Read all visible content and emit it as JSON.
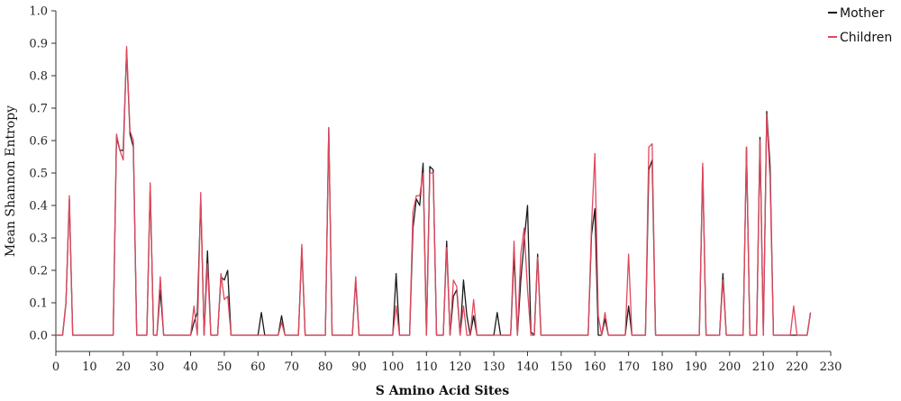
{
  "chart_data": {
    "type": "line",
    "xlabel": "S Amino Acid Sites",
    "ylabel": "Mean Shannon Entropy",
    "xlim": [
      0,
      230
    ],
    "ylim": [
      -0.05,
      1.0
    ],
    "x_ticks": [
      0,
      10,
      20,
      30,
      40,
      50,
      60,
      70,
      80,
      90,
      100,
      110,
      120,
      130,
      140,
      150,
      160,
      170,
      180,
      190,
      200,
      210,
      220,
      230
    ],
    "x_tick_labels": [
      "0",
      "10",
      "20",
      "30",
      "40",
      "50",
      "60",
      "70",
      "80",
      "90",
      "100",
      "110",
      "120",
      "130",
      "140",
      "150",
      "160",
      "170",
      "180",
      "190",
      "200",
      "210",
      "220",
      "230"
    ],
    "y_ticks": [
      0.0,
      0.1,
      0.2,
      0.3,
      0.4,
      0.5,
      0.6,
      0.7,
      0.8,
      0.9,
      1.0
    ],
    "y_tick_labels": [
      "0.0",
      "0.1",
      "0.2",
      "0.3",
      "0.4",
      "0.5",
      "0.6",
      "0.7",
      "0.8",
      "0.9",
      "1.0"
    ],
    "grid": false,
    "legend_position": "top-right",
    "series": [
      {
        "name": "Mother",
        "color": "#1a1a1a",
        "points": [
          [
            0,
            0
          ],
          [
            2,
            0
          ],
          [
            3,
            0.1
          ],
          [
            4,
            0.42
          ],
          [
            5,
            0
          ],
          [
            17,
            0
          ],
          [
            18,
            0.61
          ],
          [
            19,
            0.57
          ],
          [
            20,
            0.57
          ],
          [
            21,
            0.88
          ],
          [
            22,
            0.62
          ],
          [
            23,
            0.58
          ],
          [
            24,
            0
          ],
          [
            27,
            0
          ],
          [
            28,
            0.46
          ],
          [
            29,
            0
          ],
          [
            30,
            0
          ],
          [
            31,
            0.14
          ],
          [
            32,
            0
          ],
          [
            40,
            0
          ],
          [
            41,
            0.04
          ],
          [
            42,
            0.07
          ],
          [
            43,
            0.42
          ],
          [
            44,
            0
          ],
          [
            45,
            0.26
          ],
          [
            46,
            0
          ],
          [
            48,
            0
          ],
          [
            49,
            0.18
          ],
          [
            50,
            0.17
          ],
          [
            51,
            0.2
          ],
          [
            52,
            0
          ],
          [
            60,
            0
          ],
          [
            61,
            0.07
          ],
          [
            62,
            0
          ],
          [
            66,
            0
          ],
          [
            67,
            0.06
          ],
          [
            68,
            0
          ],
          [
            72,
            0
          ],
          [
            73,
            0.27
          ],
          [
            74,
            0
          ],
          [
            80,
            0
          ],
          [
            81,
            0.64
          ],
          [
            82,
            0
          ],
          [
            88,
            0
          ],
          [
            89,
            0.17
          ],
          [
            90,
            0
          ],
          [
            100,
            0
          ],
          [
            101,
            0.19
          ],
          [
            102,
            0
          ],
          [
            105,
            0
          ],
          [
            106,
            0.33
          ],
          [
            107,
            0.42
          ],
          [
            108,
            0.4
          ],
          [
            109,
            0.53
          ],
          [
            110,
            0
          ],
          [
            111,
            0.52
          ],
          [
            112,
            0.51
          ],
          [
            113,
            0
          ],
          [
            115,
            0
          ],
          [
            116,
            0.29
          ],
          [
            117,
            0
          ],
          [
            118,
            0.12
          ],
          [
            119,
            0.14
          ],
          [
            120,
            0
          ],
          [
            121,
            0.17
          ],
          [
            122,
            0.06
          ],
          [
            123,
            0
          ],
          [
            124,
            0.06
          ],
          [
            125,
            0
          ],
          [
            130,
            0
          ],
          [
            131,
            0.07
          ],
          [
            132,
            0
          ],
          [
            135,
            0
          ],
          [
            136,
            0.25
          ],
          [
            137,
            0
          ],
          [
            138,
            0.17
          ],
          [
            139,
            0.29
          ],
          [
            140,
            0.4
          ],
          [
            141,
            0.01
          ],
          [
            142,
            0
          ],
          [
            143,
            0.25
          ],
          [
            144,
            0
          ],
          [
            158,
            0
          ],
          [
            159,
            0.31
          ],
          [
            160,
            0.39
          ],
          [
            161,
            0
          ],
          [
            162,
            0
          ],
          [
            163,
            0.05
          ],
          [
            164,
            0
          ],
          [
            169,
            0
          ],
          [
            170,
            0.09
          ],
          [
            171,
            0
          ],
          [
            175,
            0
          ],
          [
            176,
            0.51
          ],
          [
            177,
            0.54
          ],
          [
            178,
            0
          ],
          [
            191,
            0
          ],
          [
            192,
            0.52
          ],
          [
            193,
            0
          ],
          [
            197,
            0
          ],
          [
            198,
            0.19
          ],
          [
            199,
            0
          ],
          [
            204,
            0
          ],
          [
            205,
            0.58
          ],
          [
            206,
            0
          ],
          [
            208,
            0
          ],
          [
            209,
            0.61
          ],
          [
            210,
            0
          ],
          [
            211,
            0.69
          ],
          [
            212,
            0.52
          ],
          [
            213,
            0
          ],
          [
            218,
            0
          ],
          [
            219,
            0
          ],
          [
            220,
            0
          ],
          [
            223,
            0
          ],
          [
            224,
            0.07
          ]
        ]
      },
      {
        "name": "Children",
        "color": "#e0485e",
        "points": [
          [
            0,
            0
          ],
          [
            2,
            0
          ],
          [
            3,
            0.1
          ],
          [
            4,
            0.43
          ],
          [
            5,
            0
          ],
          [
            17,
            0
          ],
          [
            18,
            0.62
          ],
          [
            19,
            0.57
          ],
          [
            20,
            0.54
          ],
          [
            21,
            0.89
          ],
          [
            22,
            0.63
          ],
          [
            23,
            0.6
          ],
          [
            24,
            0
          ],
          [
            27,
            0
          ],
          [
            28,
            0.47
          ],
          [
            29,
            0
          ],
          [
            30,
            0
          ],
          [
            31,
            0.18
          ],
          [
            32,
            0
          ],
          [
            40,
            0
          ],
          [
            41,
            0.09
          ],
          [
            42,
            0
          ],
          [
            43,
            0.44
          ],
          [
            44,
            0
          ],
          [
            45,
            0.22
          ],
          [
            46,
            0
          ],
          [
            48,
            0
          ],
          [
            49,
            0.19
          ],
          [
            50,
            0.11
          ],
          [
            51,
            0.12
          ],
          [
            52,
            0
          ],
          [
            60,
            0
          ],
          [
            61,
            0
          ],
          [
            62,
            0
          ],
          [
            66,
            0
          ],
          [
            67,
            0.04
          ],
          [
            68,
            0
          ],
          [
            72,
            0
          ],
          [
            73,
            0.28
          ],
          [
            74,
            0
          ],
          [
            80,
            0
          ],
          [
            81,
            0.64
          ],
          [
            82,
            0
          ],
          [
            88,
            0
          ],
          [
            89,
            0.18
          ],
          [
            90,
            0
          ],
          [
            100,
            0
          ],
          [
            101,
            0.09
          ],
          [
            102,
            0
          ],
          [
            105,
            0
          ],
          [
            106,
            0.38
          ],
          [
            107,
            0.43
          ],
          [
            108,
            0.43
          ],
          [
            109,
            0.5
          ],
          [
            110,
            0
          ],
          [
            111,
            0.5
          ],
          [
            112,
            0.5
          ],
          [
            113,
            0
          ],
          [
            115,
            0
          ],
          [
            116,
            0.27
          ],
          [
            117,
            0
          ],
          [
            118,
            0.17
          ],
          [
            119,
            0.15
          ],
          [
            120,
            0
          ],
          [
            121,
            0.09
          ],
          [
            122,
            0
          ],
          [
            123,
            0
          ],
          [
            124,
            0.11
          ],
          [
            125,
            0
          ],
          [
            130,
            0
          ],
          [
            131,
            0
          ],
          [
            132,
            0
          ],
          [
            135,
            0
          ],
          [
            136,
            0.29
          ],
          [
            137,
            0
          ],
          [
            138,
            0.25
          ],
          [
            139,
            0.33
          ],
          [
            140,
            0.14
          ],
          [
            141,
            0
          ],
          [
            142,
            0
          ],
          [
            143,
            0.24
          ],
          [
            144,
            0
          ],
          [
            158,
            0
          ],
          [
            159,
            0.34
          ],
          [
            160,
            0.56
          ],
          [
            161,
            0.06
          ],
          [
            162,
            0
          ],
          [
            163,
            0.07
          ],
          [
            164,
            0
          ],
          [
            169,
            0
          ],
          [
            170,
            0.25
          ],
          [
            171,
            0
          ],
          [
            175,
            0
          ],
          [
            176,
            0.58
          ],
          [
            177,
            0.59
          ],
          [
            178,
            0
          ],
          [
            191,
            0
          ],
          [
            192,
            0.53
          ],
          [
            193,
            0
          ],
          [
            197,
            0
          ],
          [
            198,
            0.17
          ],
          [
            199,
            0
          ],
          [
            204,
            0
          ],
          [
            205,
            0.58
          ],
          [
            206,
            0
          ],
          [
            208,
            0
          ],
          [
            209,
            0.6
          ],
          [
            210,
            0
          ],
          [
            211,
            0.68
          ],
          [
            212,
            0.48
          ],
          [
            213,
            0
          ],
          [
            218,
            0
          ],
          [
            219,
            0.09
          ],
          [
            220,
            0
          ],
          [
            223,
            0
          ],
          [
            224,
            0.07
          ]
        ]
      }
    ]
  }
}
